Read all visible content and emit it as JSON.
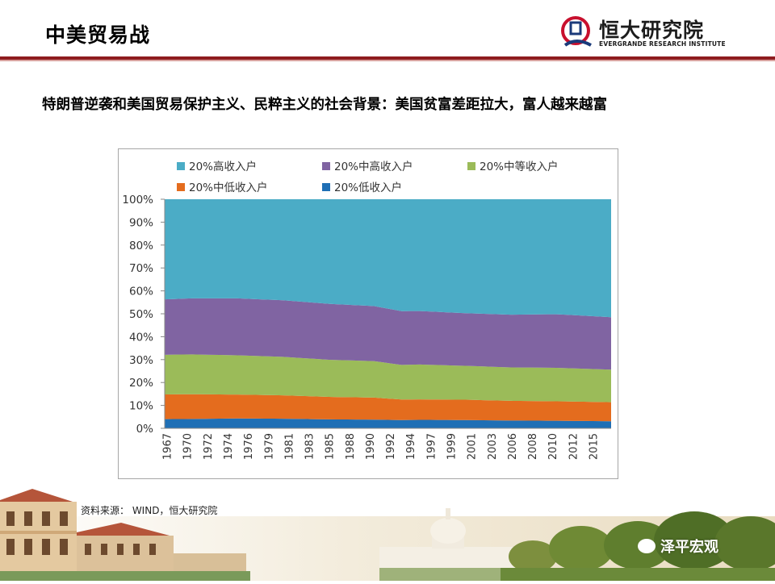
{
  "header": {
    "title": "中美贸易战",
    "logo_cn": "恒大研究院",
    "logo_en": "EVERGRANDE RESEARCH INSTITUTE",
    "rule_color": "#8e1c1f"
  },
  "subtitle": "特朗普逆袭和美国贸易保护主义、民粹主义的社会背景：美国贫富差距拉大，富人越来越富",
  "source_note": "资料来源： WIND，恒大研究院",
  "watermark": "泽平宏观",
  "chart_data": {
    "type": "area",
    "stacked": true,
    "percent": true,
    "title": "",
    "xlabel": "",
    "ylabel": "",
    "ylim": [
      0,
      100
    ],
    "yticks": [
      "0%",
      "10%",
      "20%",
      "30%",
      "40%",
      "50%",
      "60%",
      "70%",
      "80%",
      "90%",
      "100%"
    ],
    "x_start_year": 1967,
    "x_end_year": 2016,
    "xtick_labels": [
      "1967",
      "1970",
      "1972",
      "1974",
      "1976",
      "1979",
      "1981",
      "1983",
      "1985",
      "1988",
      "1990",
      "1992",
      "1994",
      "1997",
      "1999",
      "2001",
      "2003",
      "2006",
      "2008",
      "2010",
      "2012",
      "2015"
    ],
    "legend_position": "top",
    "grid": false,
    "series": [
      {
        "name": "20%低收入户",
        "color": "#1f6fb5",
        "points": [
          [
            1967,
            4.0
          ],
          [
            1970,
            4.1
          ],
          [
            1975,
            4.3
          ],
          [
            1980,
            4.2
          ],
          [
            1985,
            3.9
          ],
          [
            1990,
            3.8
          ],
          [
            1993,
            3.6
          ],
          [
            1995,
            3.7
          ],
          [
            2000,
            3.6
          ],
          [
            2005,
            3.4
          ],
          [
            2010,
            3.3
          ],
          [
            2016,
            3.1
          ]
        ]
      },
      {
        "name": "20%中低收入户",
        "color": "#e46c1e",
        "points": [
          [
            1967,
            10.8
          ],
          [
            1970,
            10.8
          ],
          [
            1975,
            10.4
          ],
          [
            1980,
            10.2
          ],
          [
            1985,
            9.8
          ],
          [
            1990,
            9.6
          ],
          [
            1993,
            9.0
          ],
          [
            1995,
            8.9
          ],
          [
            2000,
            8.9
          ],
          [
            2005,
            8.6
          ],
          [
            2010,
            8.5
          ],
          [
            2016,
            8.3
          ]
        ]
      },
      {
        "name": "20%中等收入户",
        "color": "#9bbb59",
        "points": [
          [
            1967,
            17.3
          ],
          [
            1970,
            17.4
          ],
          [
            1975,
            17.1
          ],
          [
            1980,
            16.8
          ],
          [
            1985,
            16.2
          ],
          [
            1990,
            15.9
          ],
          [
            1993,
            15.1
          ],
          [
            1995,
            15.2
          ],
          [
            2000,
            14.8
          ],
          [
            2005,
            14.6
          ],
          [
            2010,
            14.6
          ],
          [
            2016,
            14.2
          ]
        ]
      },
      {
        "name": "20%中高收入户",
        "color": "#8064a2",
        "points": [
          [
            1967,
            24.2
          ],
          [
            1970,
            24.5
          ],
          [
            1975,
            24.8
          ],
          [
            1980,
            24.7
          ],
          [
            1985,
            24.4
          ],
          [
            1990,
            24.0
          ],
          [
            1993,
            23.5
          ],
          [
            1995,
            23.3
          ],
          [
            2000,
            23.0
          ],
          [
            2005,
            23.0
          ],
          [
            2010,
            23.4
          ],
          [
            2016,
            22.9
          ]
        ]
      },
      {
        "name": "20%高收入户",
        "color": "#4bacc6",
        "points": [
          [
            1967,
            43.7
          ],
          [
            1970,
            43.3
          ],
          [
            1975,
            43.2
          ],
          [
            1980,
            44.1
          ],
          [
            1985,
            45.6
          ],
          [
            1990,
            46.6
          ],
          [
            1993,
            48.9
          ],
          [
            1995,
            48.7
          ],
          [
            2000,
            49.8
          ],
          [
            2005,
            50.4
          ],
          [
            2010,
            50.2
          ],
          [
            2016,
            51.5
          ]
        ]
      }
    ]
  }
}
